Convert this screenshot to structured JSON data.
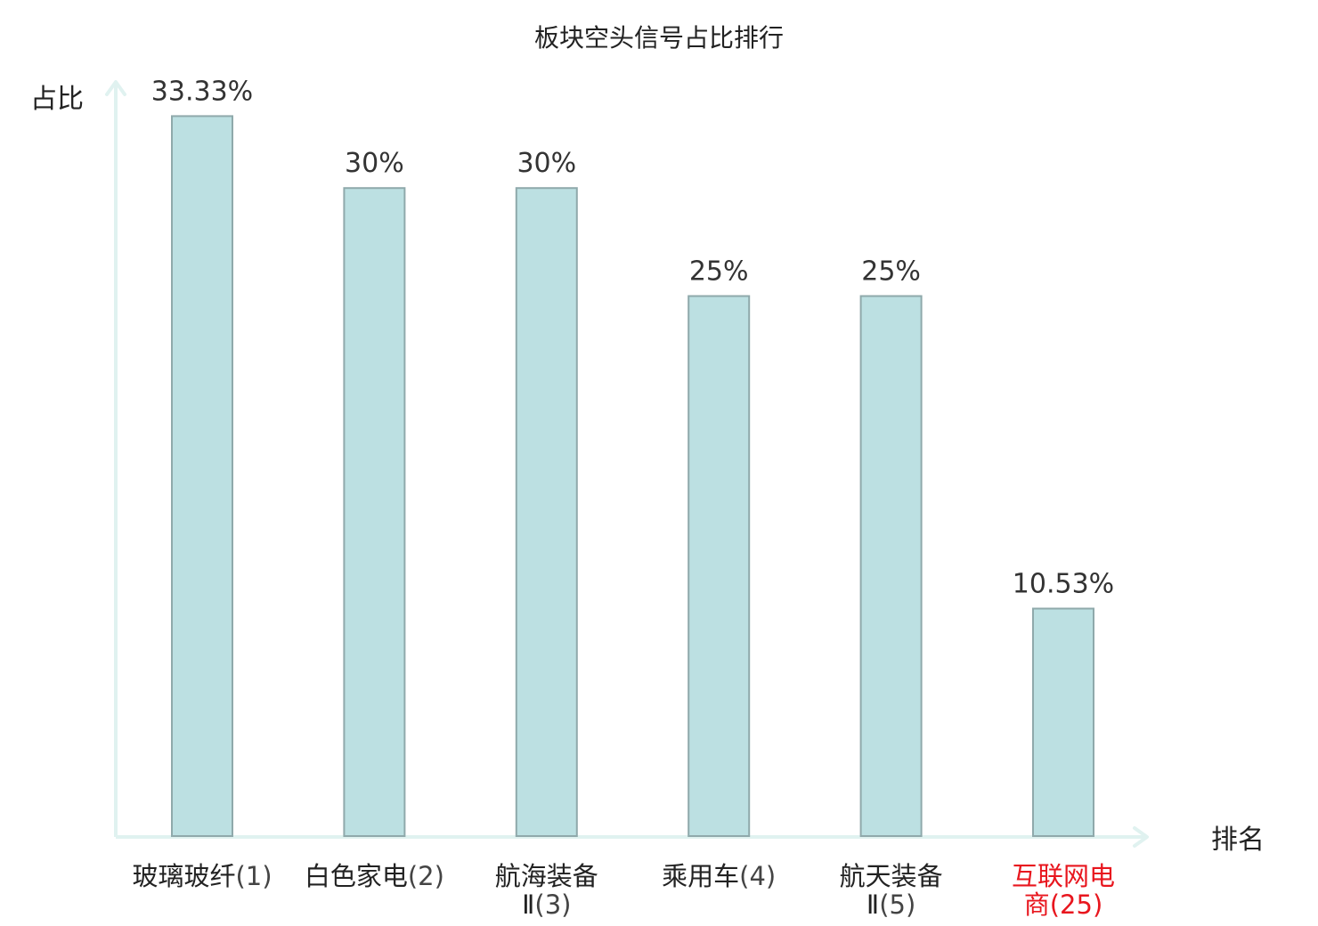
{
  "chart_data": {
    "type": "bar",
    "title": "板块空头信号占比排行",
    "ylabel": "占比",
    "xlabel": "排名",
    "ylim": [
      0,
      35
    ],
    "grid": false,
    "categories": [
      {
        "name": "玻璃玻纤",
        "rank": "(1)",
        "lines": [
          "玻璃玻纤(1)"
        ],
        "highlight": false
      },
      {
        "name": "白色家电",
        "rank": "(2)",
        "lines": [
          "白色家电(2)"
        ],
        "highlight": false
      },
      {
        "name": "航海装备Ⅱ",
        "rank": "(3)",
        "lines": [
          "航海装备",
          "Ⅱ(3)"
        ],
        "highlight": false
      },
      {
        "name": "乘用车",
        "rank": "(4)",
        "lines": [
          "乘用车(4)"
        ],
        "highlight": false
      },
      {
        "name": "航天装备Ⅱ",
        "rank": "(5)",
        "lines": [
          "航天装备",
          "Ⅱ(5)"
        ],
        "highlight": false
      },
      {
        "name": "互联网电商",
        "rank": "(25)",
        "lines": [
          "互联网电",
          "商(25)"
        ],
        "highlight": true
      }
    ],
    "values": [
      33.33,
      30,
      30,
      25,
      25,
      10.53
    ],
    "data_labels": [
      "33.33%",
      "30%",
      "30%",
      "25%",
      "25%",
      "10.53%"
    ]
  },
  "colors": {
    "bar_fill": "#bce0e2",
    "bar_stroke": "#8fa9ab",
    "axis": "#e0f2f0",
    "highlight": "#e8161e"
  }
}
